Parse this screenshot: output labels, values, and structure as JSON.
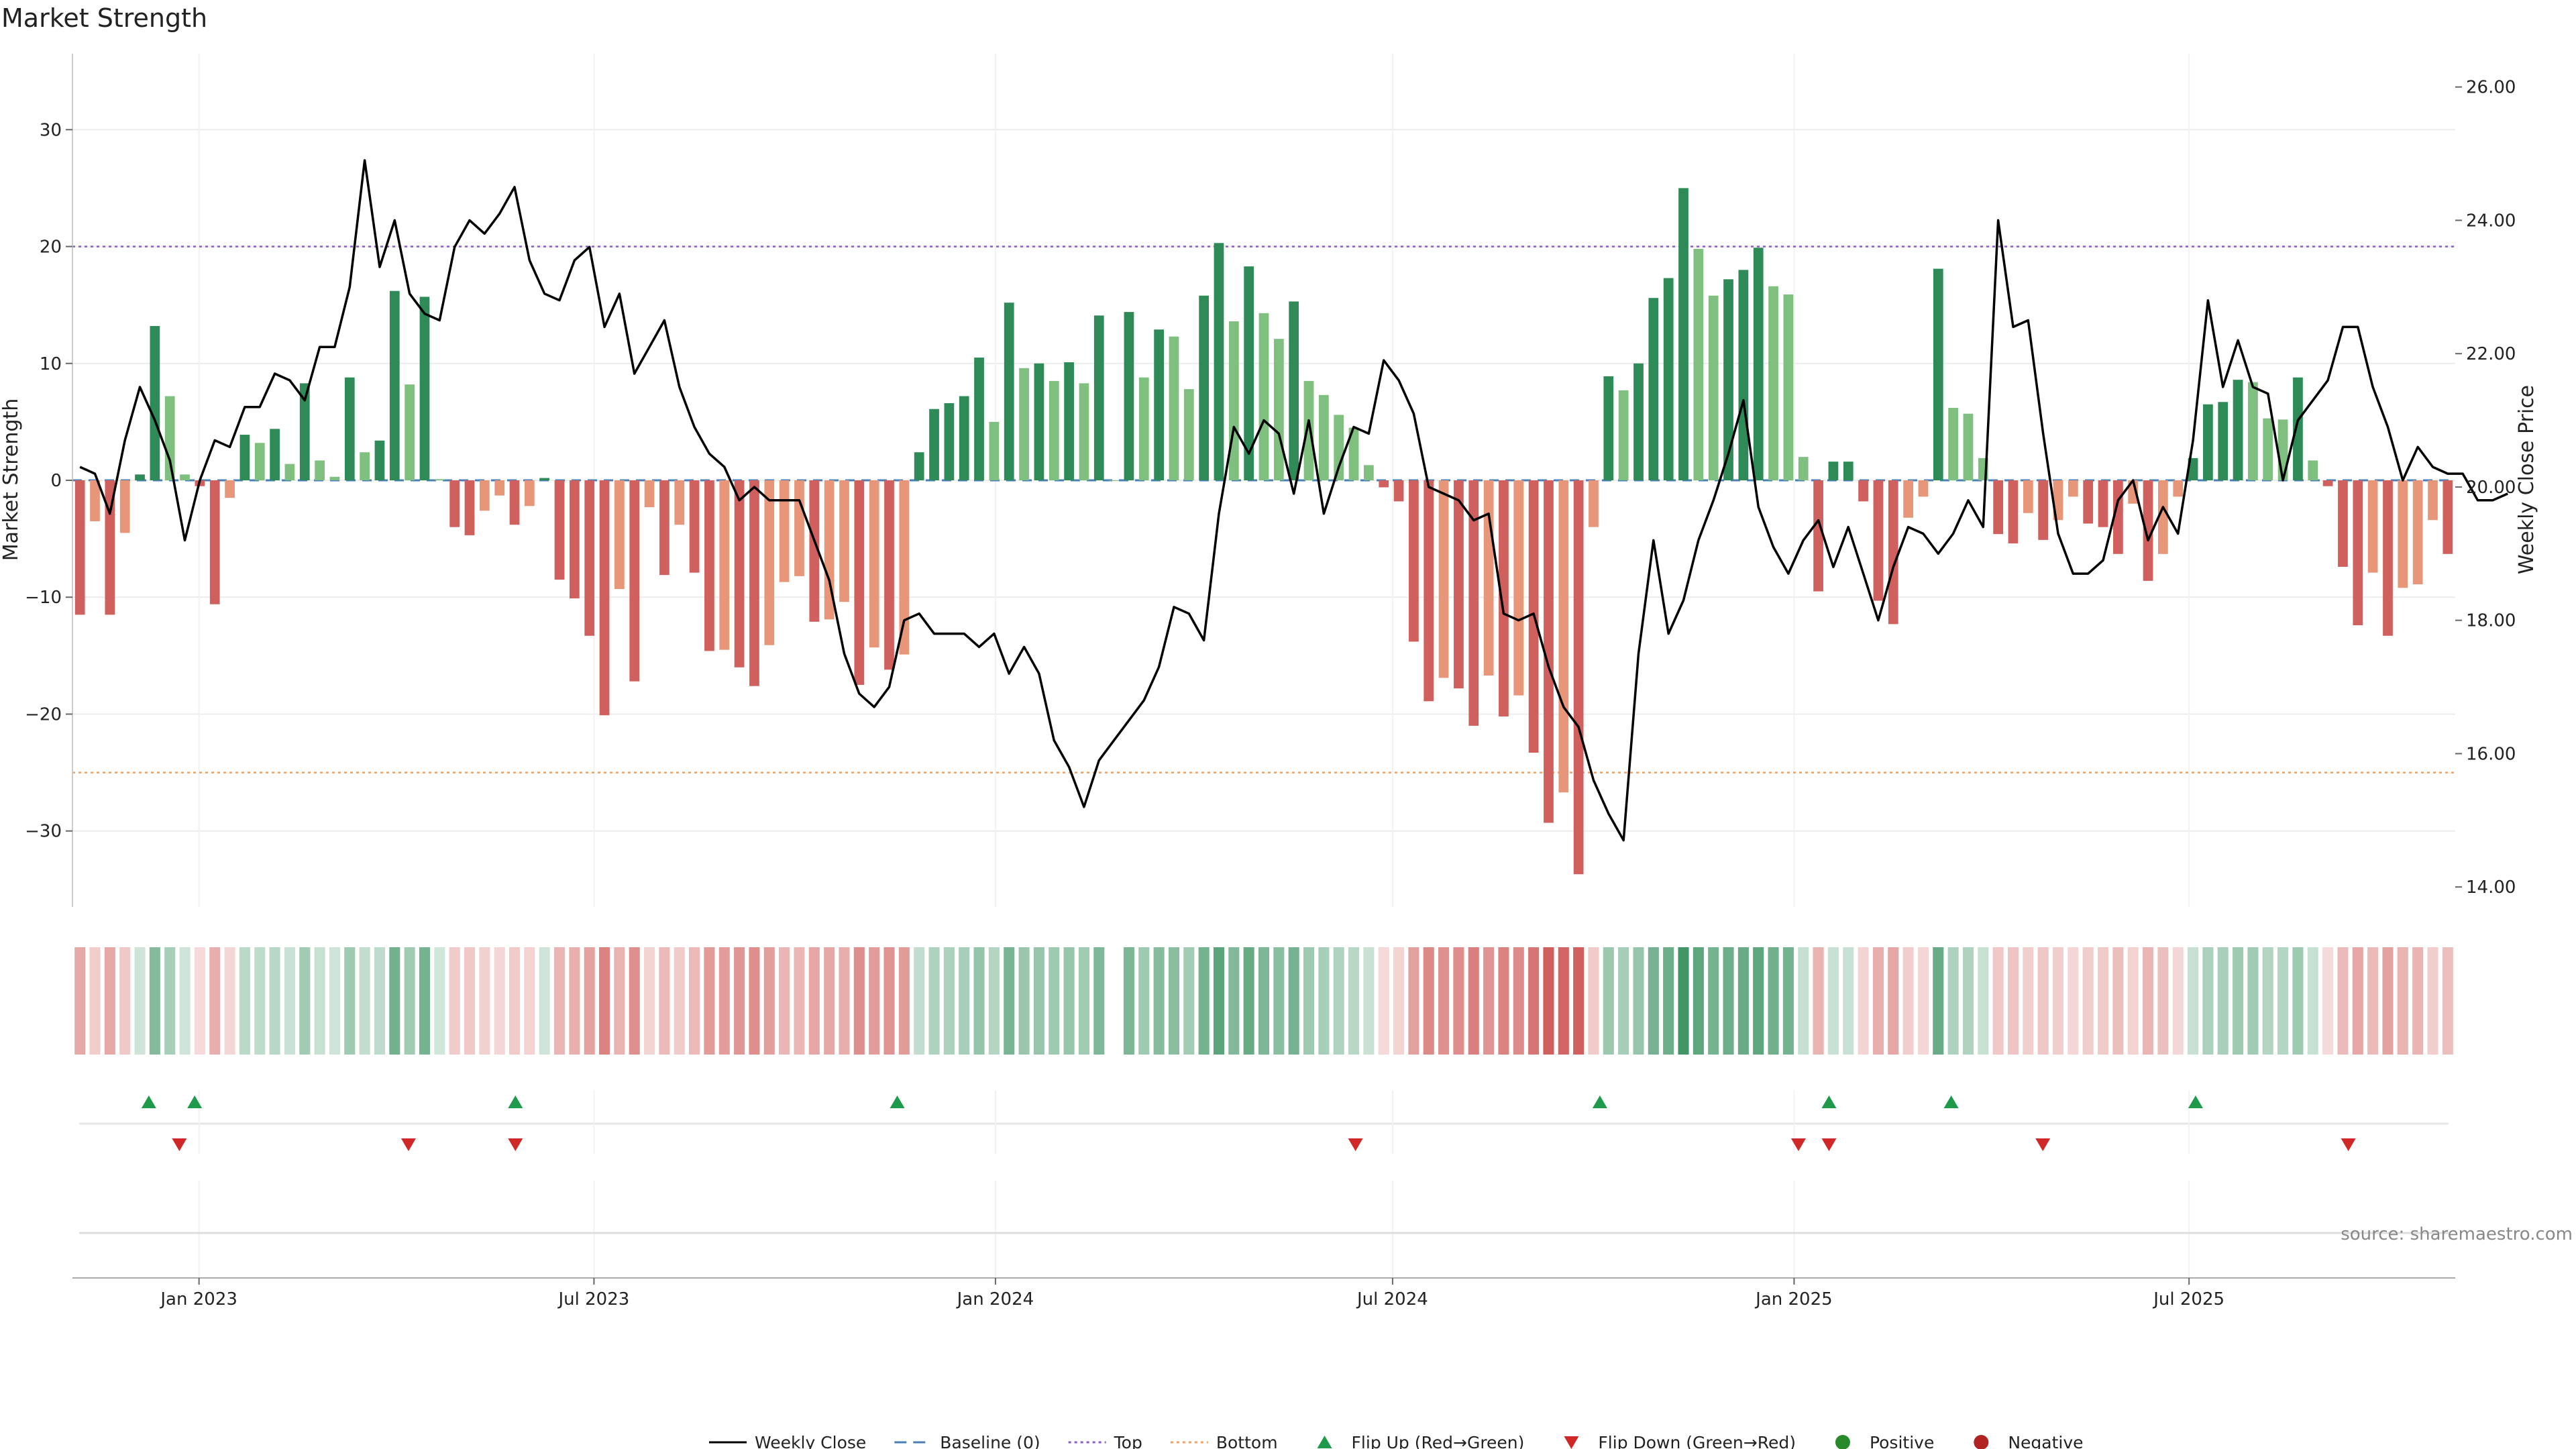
{
  "chart_data": {
    "type": "bar",
    "title": "Market Strength",
    "ylabel": "Market Strength",
    "y2label": "Weekly Close Price",
    "ylim": [
      -36.5,
      36.5
    ],
    "y2lim": [
      13.7,
      26.5
    ],
    "yticks": [
      30,
      20,
      10,
      0,
      -10,
      -20,
      -30
    ],
    "y2ticks": [
      "26.00",
      "24.00",
      "22.00",
      "20.00",
      "18.00",
      "16.00",
      "14.00"
    ],
    "top_line": 20,
    "bottom_line": -25,
    "x_start": "2022-11-04",
    "x_end": "2025-10-31",
    "xticks": [
      {
        "date": "2023-01-01",
        "label": "Jan 2023"
      },
      {
        "date": "2023-07-01",
        "label": "Jul 2023"
      },
      {
        "date": "2024-01-01",
        "label": "Jan 2024"
      },
      {
        "date": "2024-07-01",
        "label": "Jul 2024"
      },
      {
        "date": "2025-01-01",
        "label": "Jan 2025"
      },
      {
        "date": "2025-07-01",
        "label": "Jul 2025"
      }
    ],
    "strength": [
      -11.5,
      -3.5,
      -11.5,
      -4.5,
      0.5,
      13.2,
      7.2,
      0.5,
      -0.5,
      -10.6,
      -1.5,
      3.9,
      3.2,
      4.4,
      1.4,
      8.3,
      1.7,
      0.3,
      8.8,
      2.4,
      3.4,
      16.2,
      8.2,
      15.7,
      0.1,
      -4,
      -4.7,
      -2.6,
      -1.3,
      -3.8,
      -2.2,
      0.2,
      -8.5,
      -10.1,
      -13.3,
      -20.1,
      -9.3,
      -17.2,
      -2.3,
      -8.1,
      -3.8,
      -7.9,
      -14.6,
      -14.5,
      -16,
      -17.6,
      -14.1,
      -8.7,
      -8.2,
      -12.1,
      -11.9,
      -10.4,
      -17.5,
      -14.3,
      -16.2,
      -14.9,
      2.4,
      6.1,
      6.6,
      7.2,
      10.5,
      5,
      15.2,
      9.6,
      10,
      8.5,
      10.1,
      8.3,
      14.1,
      0,
      14.4,
      8.8,
      12.9,
      12.3,
      7.8,
      15.8,
      20.3,
      13.6,
      18.3,
      14.3,
      12.1,
      15.3,
      8.5,
      7.3,
      5.6,
      4.5,
      1.3,
      -0.6,
      -1.8,
      -13.8,
      -18.9,
      -16.9,
      -17.8,
      -21,
      -16.7,
      -20.2,
      -18.4,
      -23.3,
      -29.3,
      -26.7,
      -33.7,
      -4,
      8.9,
      7.7,
      10,
      15.6,
      17.3,
      25,
      19.8,
      15.8,
      17.2,
      18,
      19.9,
      16.6,
      15.9,
      2,
      -9.5,
      1.6,
      1.6,
      -1.8,
      -10.3,
      -12.3,
      -3.2,
      -1.4,
      18.1,
      6.2,
      5.7,
      1.9,
      -4.6,
      -5.4,
      -2.8,
      -5.1,
      -3.4,
      -1.4,
      -3.7,
      -4,
      -6.3,
      -2,
      -8.6,
      -6.3,
      -1.4,
      1.9,
      6.5,
      6.7,
      8.6,
      8.4,
      5.3,
      5.2,
      8.8,
      1.7,
      -0.5,
      -7.4,
      -12.4,
      -7.9,
      -13.3,
      -9.2,
      -8.9,
      -3.4,
      -6.3
    ],
    "weekly_close": [
      20.3,
      20.2,
      19.6,
      20.7,
      21.5,
      21.0,
      20.4,
      19.2,
      20.1,
      20.7,
      20.6,
      21.2,
      21.2,
      21.7,
      21.6,
      21.3,
      22.1,
      22.1,
      23.0,
      24.9,
      23.3,
      24.0,
      22.9,
      22.6,
      22.5,
      23.6,
      24.0,
      23.8,
      24.1,
      24.5,
      23.4,
      22.9,
      22.8,
      23.4,
      23.6,
      22.4,
      22.9,
      21.7,
      22.1,
      22.5,
      21.5,
      20.9,
      20.5,
      20.3,
      19.8,
      20.0,
      19.8,
      19.8,
      19.8,
      19.2,
      18.6,
      17.5,
      16.9,
      16.7,
      17.0,
      18.0,
      18.1,
      17.8,
      17.8,
      17.8,
      17.6,
      17.8,
      17.2,
      17.6,
      17.2,
      16.2,
      15.8,
      15.2,
      15.9,
      16.2,
      16.5,
      16.8,
      17.3,
      18.2,
      18.1,
      17.7,
      19.6,
      20.9,
      20.5,
      21.0,
      20.8,
      19.9,
      21.0,
      19.6,
      20.3,
      20.9,
      20.8,
      21.9,
      21.6,
      21.1,
      20.0,
      19.9,
      19.8,
      19.5,
      19.6,
      18.1,
      18.0,
      18.1,
      17.3,
      16.7,
      16.4,
      15.6,
      15.1,
      14.7,
      17.5,
      19.2,
      17.8,
      18.3,
      19.2,
      19.8,
      20.5,
      21.3,
      19.7,
      19.1,
      18.7,
      19.2,
      19.5,
      18.8,
      19.4,
      18.7,
      18.0,
      18.8,
      19.4,
      19.3,
      19.0,
      19.3,
      19.8,
      19.4,
      24.0,
      22.4,
      22.5,
      20.8,
      19.3,
      18.7,
      18.7,
      18.9,
      19.8,
      20.1,
      19.2,
      19.7,
      19.3,
      20.7,
      22.8,
      21.5,
      22.2,
      21.5,
      21.4,
      20.1,
      21.0,
      21.3,
      21.6,
      22.4,
      22.4,
      21.5,
      20.9,
      20.1,
      20.6,
      20.3,
      20.2,
      20.2,
      19.8,
      19.8,
      19.9
    ],
    "flip_up_dates": [
      "2022-12-09",
      "2022-12-30",
      "2023-05-26",
      "2023-11-17",
      "2024-10-04",
      "2025-01-17",
      "2025-03-14",
      "2025-07-04"
    ],
    "flip_down_dates": [
      "2022-12-23",
      "2023-04-07",
      "2023-05-26",
      "2024-06-14",
      "2025-01-03",
      "2025-01-17",
      "2025-04-25",
      "2025-09-12"
    ],
    "colors": {
      "pos_strong": "#2e8b57",
      "pos_weak": "#7fbf7f",
      "neg_strong": "#d0605e",
      "neg_weak": "#e8967a",
      "line": "#000000",
      "top": "#8a5cc4",
      "bottom": "#f0a060",
      "baseline": "#4a7fb5",
      "flip_up": "#1f9a4a",
      "flip_down": "#d02828",
      "positive_dot": "#2a8a2a",
      "negative_dot": "#b22222"
    },
    "legend": [
      {
        "label": "Weekly Close",
        "kind": "line"
      },
      {
        "label": "Baseline (0)",
        "kind": "dash"
      },
      {
        "label": "Top",
        "kind": "dot-purple"
      },
      {
        "label": "Bottom",
        "kind": "dot-orange"
      },
      {
        "label": "Flip Up (Red→Green)",
        "kind": "tri-up"
      },
      {
        "label": "Flip Down (Green→Red)",
        "kind": "tri-down"
      },
      {
        "label": "Positive",
        "kind": "dot-green"
      },
      {
        "label": "Negative",
        "kind": "dot-red"
      }
    ],
    "legend_position": "bottom-center",
    "source": "source: sharemaestro.com"
  }
}
